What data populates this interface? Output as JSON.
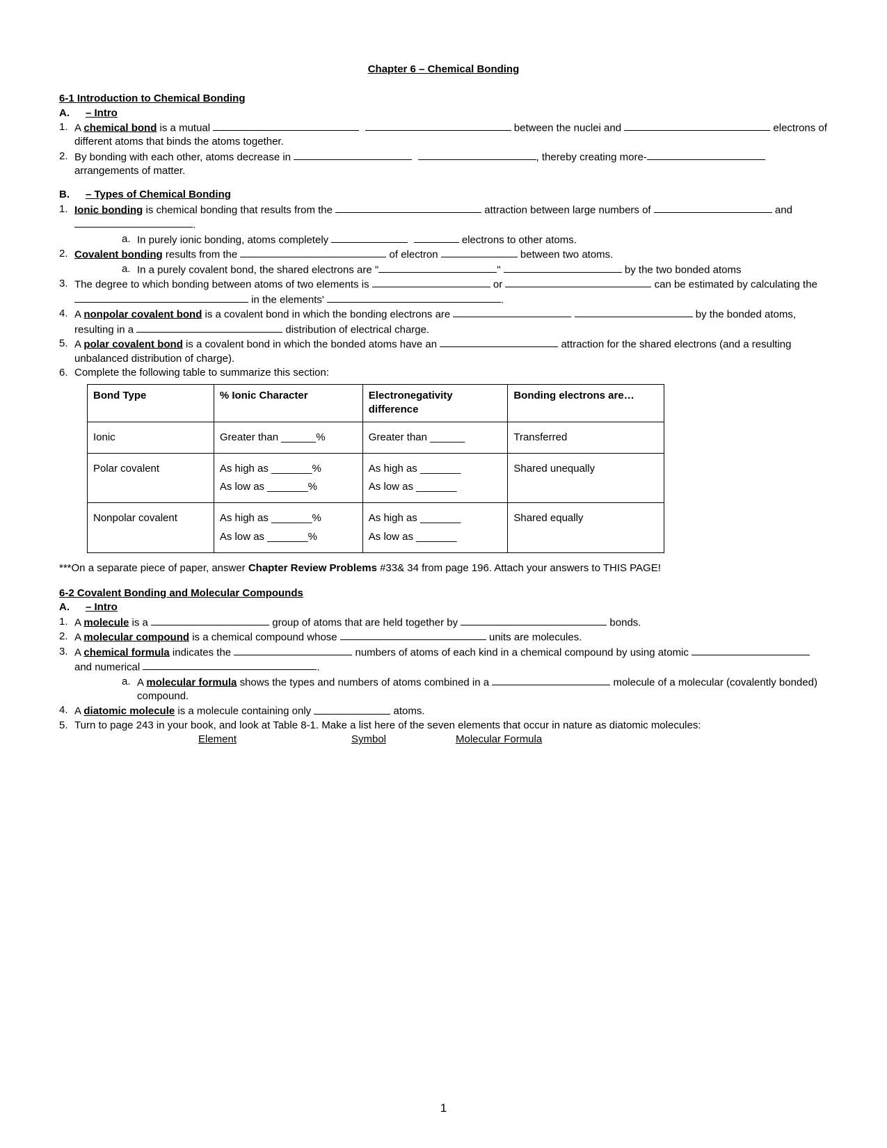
{
  "title": "Chapter 6 – Chemical Bonding",
  "page_number": "1",
  "sec61": {
    "header": "6-1 Introduction to Chemical Bonding",
    "A": {
      "label": "A.",
      "title": "– Intro",
      "n1_label": "1.",
      "n1_prefix": "A ",
      "n1_term": "chemical bond",
      "n1_t1": " is a mutual ",
      "n1_t2": " between the nuclei and ",
      "n1_t3": " electrons of different atoms that binds the atoms together.",
      "n2_label": "2.",
      "n2_t1": "By bonding with each other, atoms decrease in ",
      "n2_t2": ", thereby creating more-",
      "n2_t3": " arrangements of matter."
    },
    "B": {
      "label": "B.",
      "title": "– Types of Chemical Bonding",
      "n1_label": "1.",
      "n1_term": "Ionic bonding",
      "n1_t1": " is chemical bonding that results from the ",
      "n1_t2": " attraction between large numbers of ",
      "n1_t3": " and ",
      "n1_t4": ".",
      "n1a_label": "a.",
      "n1a_t1": "In purely ionic bonding, atoms completely ",
      "n1a_t2": " electrons to other atoms.",
      "n2_label": "2.",
      "n2_term": "Covalent bonding",
      "n2_t1": " results from the ",
      "n2_t2": " of electron ",
      "n2_t3": " between two atoms.",
      "n2a_label": "a.",
      "n2a_t1": "In a purely covalent bond, the shared electrons are \"",
      "n2a_t2": "\" ",
      "n2a_t3": " by the two bonded atoms",
      "n3_label": "3.",
      "n3_t1": "The degree to which bonding between atoms of two elements is ",
      "n3_t2": " or ",
      "n3_t3": " can be estimated by calculating the ",
      "n3_t4": " in the elements' ",
      "n3_t5": ".",
      "n4_label": "4.",
      "n4_prefix": "A ",
      "n4_term": "nonpolar covalent bond",
      "n4_t1": " is a covalent bond in which the bonding electrons are ",
      "n4_t2": " by the bonded atoms, resulting in a ",
      "n4_t3": " distribution of electrical charge.",
      "n5_label": "5.",
      "n5_prefix": "A ",
      "n5_term": "polar covalent bond",
      "n5_t1": " is a covalent bond in which the bonded atoms have an ",
      "n5_t2": " attraction for the shared electrons (and a resulting unbalanced distribution of charge).",
      "n6_label": "6.",
      "n6_text": "Complete the following table to summarize this section:"
    }
  },
  "table": {
    "col_widths": [
      "170px",
      "200px",
      "195px",
      "210px"
    ],
    "headers": [
      "Bond Type",
      "% Ionic Character",
      "Electronegativity difference",
      "Bonding electrons are…"
    ],
    "rows": [
      {
        "bond_type": "Ionic",
        "ionic_lines": [
          "Greater than ______%"
        ],
        "en_lines": [
          "Greater than ______"
        ],
        "electrons": "Transferred"
      },
      {
        "bond_type": "Polar covalent",
        "ionic_lines": [
          "As high as _______%",
          "As low as _______%"
        ],
        "en_lines": [
          "As high as _______",
          "As low as _______"
        ],
        "electrons": "Shared unequally"
      },
      {
        "bond_type": "Nonpolar covalent",
        "ionic_lines": [
          "As high as _______%",
          "As low as _______%"
        ],
        "en_lines": [
          "As high as _______",
          "As low as _______"
        ],
        "electrons": "Shared equally"
      }
    ]
  },
  "note": {
    "t1": "***On a separate piece of paper, answer ",
    "bold": "Chapter Review Problems",
    "t2": " #33& 34 from page 196. Attach your answers to THIS PAGE!"
  },
  "sec62": {
    "header": "6-2 Covalent Bonding and Molecular Compounds",
    "A": {
      "label": "A.",
      "title": "– Intro",
      "n1_label": "1.",
      "n1_prefix": "A ",
      "n1_term": "molecule",
      "n1_t1": " is a ",
      "n1_t2": " group of atoms that are held together by ",
      "n1_t3": " bonds.",
      "n2_label": "2.",
      "n2_prefix": "A ",
      "n2_term": "molecular compound",
      "n2_t1": " is a chemical compound whose ",
      "n2_t2": " units are molecules.",
      "n3_label": "3.",
      "n3_prefix": "A ",
      "n3_term": "chemical formula",
      "n3_t1": " indicates the ",
      "n3_t2": " numbers of atoms of each kind in a chemical compound by using atomic ",
      "n3_t3": " and numerical ",
      "n3_t4": ".",
      "n3a_label": "a.",
      "n3a_prefix": "A ",
      "n3a_term": "molecular formula",
      "n3a_t1": " shows the types and numbers of atoms combined in a ",
      "n3a_t2": " molecule of a molecular (covalently bonded) compound.",
      "n4_label": "4.",
      "n4_prefix": "A ",
      "n4_term": "diatomic molecule",
      "n4_t1": " is a molecule containing only ",
      "n4_t2": " atoms.",
      "n5_label": "5.",
      "n5_text": "Turn to page 243 in your book, and look at Table 8-1. Make a list here of the seven elements that occur in nature as diatomic molecules:",
      "mini_headers": [
        "Element",
        "Symbol",
        "Molecular Formula"
      ]
    }
  }
}
